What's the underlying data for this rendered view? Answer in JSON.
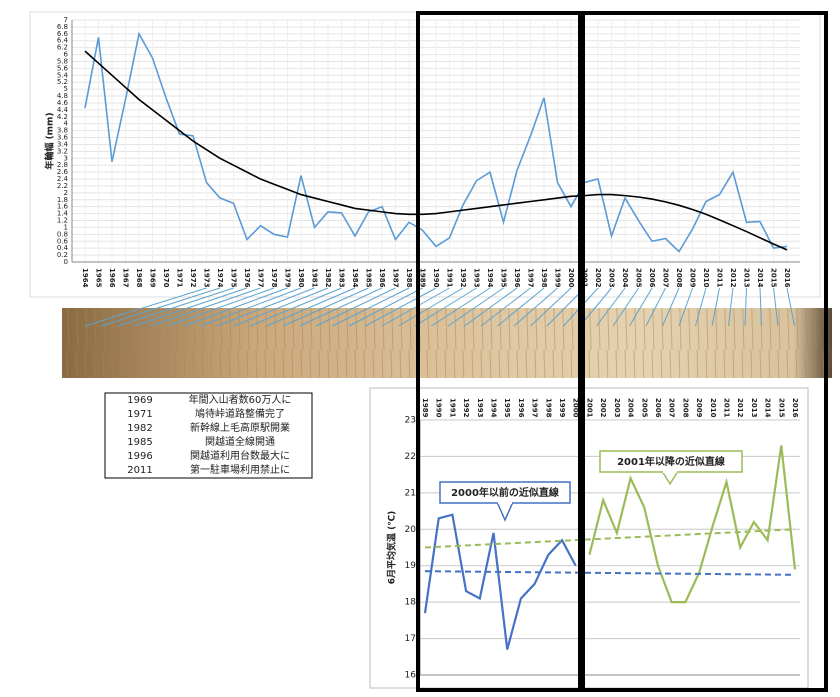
{
  "chart_data": [
    {
      "type": "line",
      "y_label": "年輪幅 (mm)",
      "grid": true,
      "categories": [
        "1964",
        "1965",
        "1966",
        "1967",
        "1968",
        "1969",
        "1970",
        "1971",
        "1972",
        "1973",
        "1974",
        "1975",
        "1976",
        "1977",
        "1978",
        "1979",
        "1980",
        "1981",
        "1982",
        "1983",
        "1984",
        "1985",
        "1986",
        "1987",
        "1988",
        "1989",
        "1990",
        "1991",
        "1992",
        "1993",
        "1994",
        "1995",
        "1996",
        "1997",
        "1998",
        "1999",
        "2000",
        "2001",
        "2002",
        "2003",
        "2004",
        "2005",
        "2006",
        "2007",
        "2008",
        "2009",
        "2010",
        "2011",
        "2012",
        "2013",
        "2014",
        "2015",
        "2016"
      ],
      "series": [
        {
          "color": "#5b9bd5",
          "values": [
            4.45,
            6.5,
            2.9,
            4.7,
            6.6,
            5.9,
            4.75,
            3.7,
            3.65,
            2.3,
            1.85,
            1.7,
            0.65,
            1.05,
            0.8,
            0.72,
            2.5,
            1.0,
            1.45,
            1.42,
            0.75,
            1.45,
            1.6,
            0.65,
            1.15,
            0.92,
            0.45,
            0.7,
            1.65,
            2.35,
            2.6,
            1.15,
            2.65,
            3.65,
            4.75,
            2.3,
            1.6,
            2.3,
            2.4,
            0.75,
            1.85,
            1.2,
            0.6,
            0.68,
            0.3,
            0.95,
            1.75,
            1.95,
            2.6,
            1.15,
            1.17,
            0.4,
            0.45
          ]
        },
        {
          "color": "#000000",
          "values": [
            6.1,
            5.75,
            5.4,
            5.05,
            4.7,
            4.4,
            4.1,
            3.8,
            3.5,
            3.25,
            3.0,
            2.8,
            2.6,
            2.4,
            2.25,
            2.1,
            1.95,
            1.85,
            1.75,
            1.65,
            1.55,
            1.5,
            1.45,
            1.4,
            1.38,
            1.38,
            1.4,
            1.45,
            1.5,
            1.55,
            1.6,
            1.65,
            1.7,
            1.75,
            1.8,
            1.85,
            1.9,
            1.92,
            1.95,
            1.95,
            1.92,
            1.88,
            1.82,
            1.74,
            1.64,
            1.52,
            1.38,
            1.22,
            1.05,
            0.88,
            0.7,
            0.52,
            0.35
          ]
        }
      ],
      "ylim": [
        0,
        7
      ],
      "yticks": [
        0,
        0.2,
        0.4,
        0.6,
        0.8,
        1,
        1.2,
        1.4,
        1.6,
        1.8,
        2,
        2.2,
        2.4,
        2.6,
        2.8,
        3,
        3.2,
        3.4,
        3.6,
        3.8,
        4,
        4.2,
        4.4,
        4.6,
        4.8,
        5,
        5.2,
        5.4,
        5.6,
        5.8,
        6,
        6.2,
        6.4,
        6.6,
        6.8,
        7
      ]
    },
    {
      "type": "line",
      "y_label": "6月平均気温 (℃)",
      "grid": true,
      "categories": [
        "1989",
        "1990",
        "1991",
        "1992",
        "1993",
        "1994",
        "1995",
        "1996",
        "1997",
        "1998",
        "1999",
        "2000",
        "2001",
        "2002",
        "2003",
        "2004",
        "2005",
        "2006",
        "2007",
        "2008",
        "2009",
        "2010",
        "2011",
        "2012",
        "2013",
        "2014",
        "2015",
        "2016"
      ],
      "series": [
        {
          "color": "#4472c4",
          "values": [
            17.7,
            20.3,
            20.4,
            18.3,
            18.1,
            19.9,
            16.7,
            18.1,
            18.5,
            19.3,
            19.7,
            19.0,
            null,
            null,
            null,
            null,
            null,
            null,
            null,
            null,
            null,
            null,
            null,
            null,
            null,
            null,
            null,
            null
          ]
        },
        {
          "color": "#9bbb59",
          "values": [
            null,
            null,
            null,
            null,
            null,
            null,
            null,
            null,
            null,
            null,
            null,
            null,
            19.3,
            20.8,
            19.9,
            21.4,
            20.6,
            19.0,
            18.0,
            18.0,
            18.8,
            20.1,
            21.3,
            19.5,
            20.2,
            19.7,
            22.3,
            18.9
          ]
        }
      ],
      "trendlines": [
        {
          "label": "2000年以前の近似直線",
          "color": "#4472c4",
          "values": [
            18.85,
            18.75
          ]
        },
        {
          "label": "2001年以降の近似直線",
          "color": "#9bbb59",
          "values": [
            19.5,
            20.0
          ]
        }
      ],
      "ylim": [
        16,
        23
      ],
      "yticks": [
        16,
        17,
        18,
        19,
        20,
        21,
        22,
        23
      ]
    }
  ],
  "table": {
    "rows": [
      [
        "1969",
        "年間入山者数60万人に"
      ],
      [
        "1971",
        "鳩待峠道路整備完了"
      ],
      [
        "1982",
        "新幹線上毛高原駅開業"
      ],
      [
        "1985",
        "関越道全線開通"
      ],
      [
        "1996",
        "関越道利用台数最大に"
      ],
      [
        "2011",
        "第一駐車場利用禁止に"
      ]
    ]
  }
}
